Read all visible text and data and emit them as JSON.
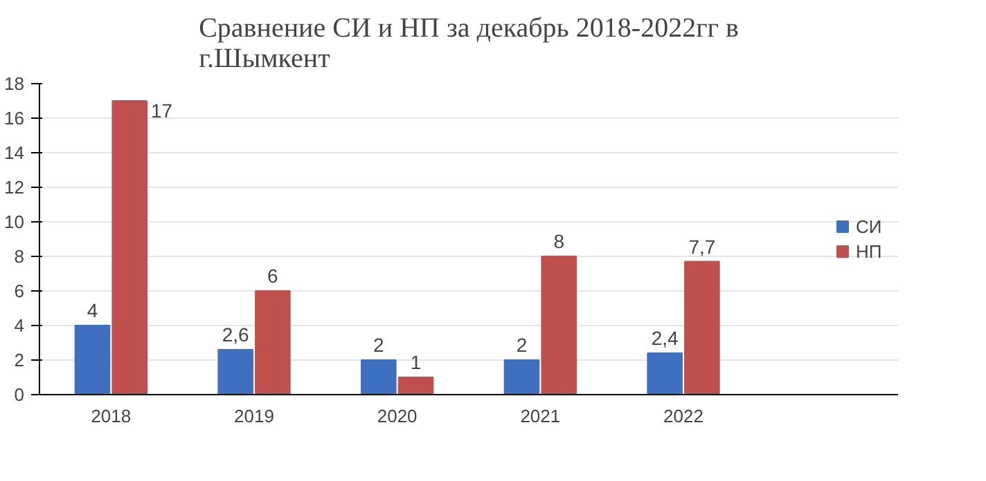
{
  "chart_data": {
    "type": "bar",
    "title": "Сравнение СИ и НП за декабрь 2018-2022гг в г.Шымкент",
    "categories": [
      "2018",
      "2019",
      "2020",
      "2021",
      "2022",
      null
    ],
    "series": [
      {
        "name": "СИ",
        "color": "#3f6fbf",
        "values": [
          4,
          2.6,
          2,
          2,
          2.4,
          null
        ],
        "value_labels": [
          "4",
          "2,6",
          "2",
          "2",
          "2,4",
          null
        ]
      },
      {
        "name": "НП",
        "color": "#c0504d",
        "values": [
          17,
          6,
          1,
          8,
          7.7,
          null
        ],
        "value_labels": [
          "17",
          "6",
          "1",
          "8",
          "7,7",
          null
        ]
      }
    ],
    "ylim": [
      0,
      18
    ],
    "yticks": [
      0,
      2,
      4,
      6,
      8,
      10,
      12,
      14,
      16,
      18
    ],
    "grid": "y",
    "legend": "right"
  }
}
